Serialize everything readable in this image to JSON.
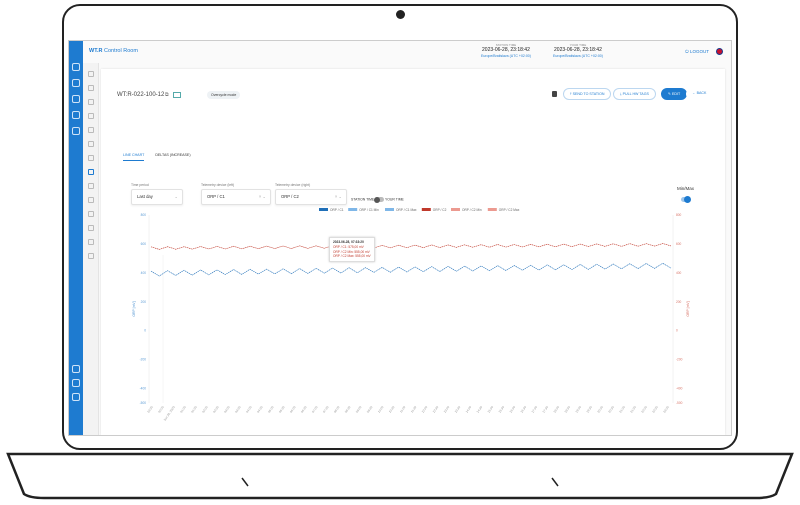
{
  "header": {
    "brand_bold": "WT.R",
    "brand_rest": " Control Room",
    "station_time": {
      "label": "STATION TIME",
      "time": "2023-06-28, 23:18:42",
      "zone": "Europe/Bratislava (UTC +02:00)"
    },
    "your_time": {
      "label": "YOUR TIME",
      "time": "2023-06-28, 23:18:42",
      "zone": "Europe/Bratislava (UTC +02:00)"
    },
    "logout": "LOGOUT",
    "language_flag": "uk-flag-icon"
  },
  "device": {
    "title": "WT:R-022-100-12",
    "badge": "Overcycle mode"
  },
  "actions": {
    "send": "SEND TO STATION",
    "pull": "PULL HW TAGS",
    "edit": "EDIT",
    "back": "BACK"
  },
  "tabs": [
    {
      "label": "LINE CHART",
      "active": true
    },
    {
      "label": "DELTAS (INCREASE)",
      "active": false
    }
  ],
  "filters": {
    "time_period": {
      "label": "Time period",
      "value": "Last day"
    },
    "left": {
      "label": "Telemetry device (left)",
      "value": "ORP / C1"
    },
    "right": {
      "label": "Telemetry device (right)",
      "value": "ORP / C2"
    },
    "station_time": "STATION TIME",
    "your_time": "YOUR TIME",
    "minmax": "Min/Max",
    "minmax_on": true
  },
  "colors": {
    "accent": "#1e7bd0",
    "c1": "#1f6fb8",
    "c1_minmax": "#7fb7e8",
    "c2": "#c0392b",
    "c2_minmax": "#ec9a90"
  },
  "tooltip": {
    "title": "2023-06-28, 07:33:20",
    "lines": [
      "ORP / C1: 575,00 mV",
      "ORP / C2 Min: 555,00 mV",
      "ORP / C2 Max: 555,00 mV"
    ]
  },
  "chart_data": {
    "type": "line",
    "legend": [
      "ORP / C1",
      "ORP / C1 Min",
      "ORP / C1 Max",
      "ORP / C2",
      "ORP / C2 Min",
      "ORP / C2 Max"
    ],
    "legend_placement": "top",
    "ylabel_left": "ORP [mV]",
    "ylabel_right": "ORP [mV]",
    "ylim": [
      -500,
      800
    ],
    "yticks": [
      800,
      600,
      400,
      200,
      0,
      -200,
      -400,
      -500
    ],
    "xticks": [
      "23:30",
      "00:00",
      "Jun 28, 2023",
      "01:00",
      "01:30",
      "02:00",
      "02:30",
      "03:00",
      "03:30",
      "04:00",
      "04:30",
      "05:00",
      "05:30",
      "06:00",
      "06:30",
      "07:00",
      "07:30",
      "08:00",
      "08:30",
      "09:00",
      "09:30",
      "10:00",
      "10:30",
      "11:00",
      "11:30",
      "12:00",
      "12:30",
      "13:00",
      "13:30",
      "14:00",
      "14:30",
      "15:00",
      "15:30",
      "16:00",
      "16:30",
      "17:00",
      "17:30",
      "18:00",
      "18:30",
      "19:00",
      "19:30",
      "20:00",
      "20:30",
      "21:00",
      "21:30",
      "22:00",
      "22:30",
      "23:00"
    ],
    "series": [
      {
        "name": "ORP / C1",
        "values": [
          412,
          378,
          415,
          382,
          418,
          384,
          420,
          386,
          421,
          388,
          423,
          389,
          425,
          391,
          426,
          393,
          428,
          394,
          430,
          396,
          431,
          398,
          433,
          399,
          435,
          401,
          436,
          403,
          438,
          404,
          440,
          406,
          441,
          408,
          443,
          409,
          445,
          411,
          446,
          413,
          448,
          414,
          450,
          416,
          451,
          418,
          453,
          419,
          455,
          421,
          456,
          423,
          458,
          424,
          460,
          426,
          461,
          428,
          463,
          429,
          465,
          431,
          466,
          433
        ]
      },
      {
        "name": "ORP / C2",
        "values": [
          580,
          562,
          581,
          563,
          581,
          564,
          582,
          565,
          583,
          565,
          584,
          566,
          584,
          567,
          585,
          568,
          586,
          568,
          587,
          569,
          587,
          570,
          588,
          571,
          589,
          571,
          590,
          572,
          590,
          573,
          591,
          574,
          592,
          574,
          593,
          575,
          593,
          576,
          594,
          577,
          595,
          577,
          596,
          578,
          596,
          579,
          597,
          580,
          598,
          580,
          599,
          581,
          599,
          582,
          600,
          583,
          601,
          583,
          602,
          584,
          602,
          585,
          603,
          586
        ]
      }
    ]
  }
}
